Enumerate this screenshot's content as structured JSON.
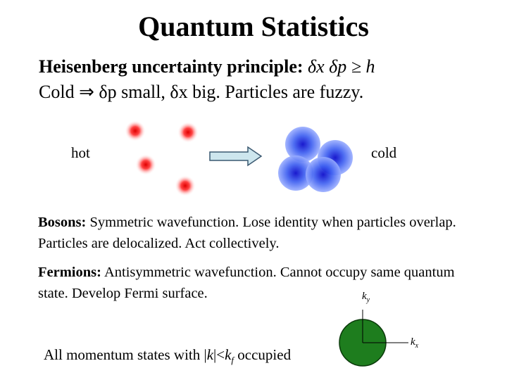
{
  "title": "Quantum Statistics",
  "heisenberg": {
    "label": "Heisenberg uncertainty principle:",
    "formula": "δx δp ≥ h"
  },
  "cold_line": "Cold ⇒ δp small, δx big. Particles are fuzzy.",
  "figure": {
    "hot": "hot",
    "cold": "cold"
  },
  "bosons": {
    "term": "Bosons:",
    "text": "Symmetric wavefunction.  Lose identity when particles overlap. Particles are delocalized.  Act collectively."
  },
  "fermions": {
    "term": "Fermions:",
    "text": "Antisymmetric wavefunction.  Cannot occupy same quantum state. Develop Fermi surface."
  },
  "fermi_sphere": {
    "ky": {
      "base": "k",
      "sub": "y"
    },
    "kx": {
      "base": "k",
      "sub": "x"
    },
    "caption": [
      "All momentum states with |",
      "k",
      "|<",
      "k",
      "f",
      " occupied"
    ]
  }
}
